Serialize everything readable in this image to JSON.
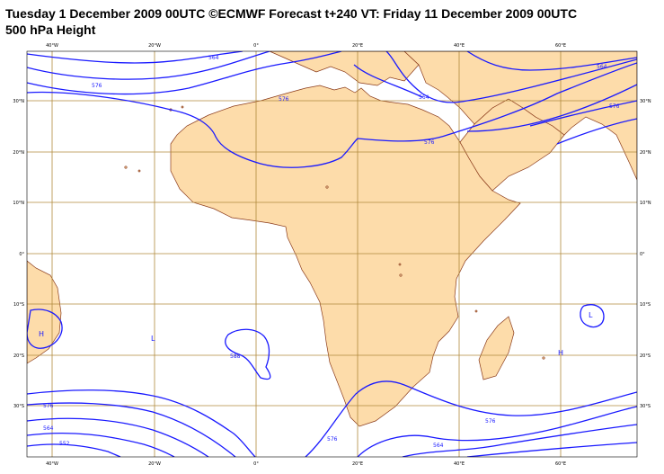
{
  "header": {
    "title": "Tuesday 1 December 2009 00UTC ©ECMWF Forecast t+240 VT: Friday 11 December 2009 00UTC",
    "subtitle": "500 hPa Height"
  },
  "axes": {
    "lon_labels": [
      "40°W",
      "20°W",
      "0°",
      "20°E",
      "40°E",
      "60°E"
    ],
    "lat_labels": [
      "30°N",
      "20°N",
      "10°N",
      "0°",
      "10°S",
      "20°S",
      "30°S"
    ]
  },
  "contour_labels": {
    "north_564": "564",
    "north_576_west": "576",
    "north_576_center": "576",
    "north_576_east": "576",
    "north_564_east": "564",
    "north_576_sahara": "576",
    "north_564_sahara": "564",
    "south_576": "576",
    "south_564": "564",
    "south_552": "552",
    "south_576_center": "576",
    "south_576_east": "576",
    "south_564_east": "564",
    "closed_588": "588"
  },
  "pressure_systems": {
    "h_west": "H",
    "l_atlantic": "L",
    "h_indian": "H",
    "l_indian": "L"
  },
  "colors": {
    "land": "#fddcaa",
    "coast": "#8a3a1a",
    "grid": "#b08a3c",
    "contour": "#1a1aff"
  }
}
